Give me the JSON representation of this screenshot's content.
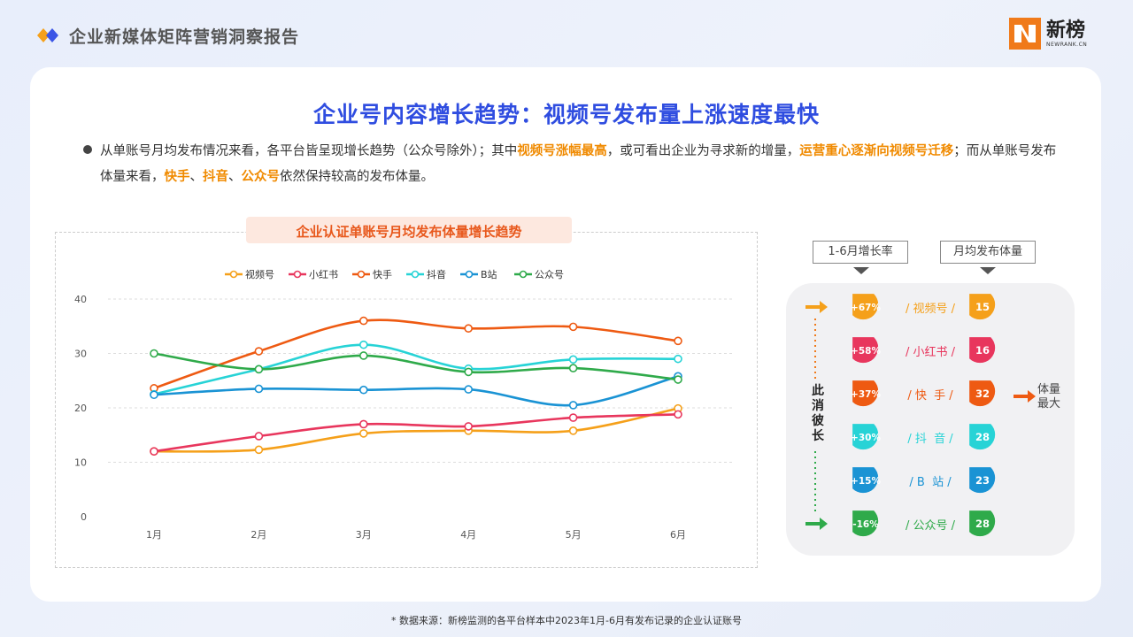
{
  "header": {
    "title": "企业新媒体矩阵营销洞察报告",
    "brand_cn": "新榜",
    "brand_en": "NEWRANK.CN"
  },
  "main_title": "企业号内容增长趋势：视频号发布量上涨速度最快",
  "paragraph": {
    "p1": "从单账号月均发布情况来看，各平台皆呈现增长趋势（公众号除外）；其中",
    "h1": "视频号涨幅最高",
    "p2": "，或可看出企业为寻求新的增量，",
    "h2": "运营重心逐渐向视频号迁移",
    "p3": "；而从单账号发布体量来看，",
    "h3": "快手",
    "p4": "、",
    "h4": "抖音",
    "p5": "、",
    "h5": "公众号",
    "p6": "依然保持较高的发布体量。"
  },
  "chart_data": {
    "type": "line",
    "title": "企业认证单账号月均发布体量增长趋势",
    "categories": [
      "1月",
      "2月",
      "3月",
      "4月",
      "5月",
      "6月"
    ],
    "ylim": [
      0,
      40
    ],
    "yticks": [
      0,
      10,
      20,
      30,
      40
    ],
    "grid": true,
    "legend_position": "top",
    "series": [
      {
        "name": "视频号",
        "color": "#f5a01a",
        "values": [
          12,
          12.3,
          15.3,
          15.8,
          15.8,
          19.9
        ]
      },
      {
        "name": "小红书",
        "color": "#e8365d",
        "values": [
          12,
          14.8,
          17,
          16.6,
          18.2,
          18.8
        ]
      },
      {
        "name": "快手",
        "color": "#ee5a12",
        "values": [
          23.6,
          30.4,
          36,
          34.6,
          34.9,
          32.3
        ]
      },
      {
        "name": "抖音",
        "color": "#27d3d6",
        "values": [
          22.5,
          27.1,
          31.6,
          27.2,
          28.9,
          29
        ]
      },
      {
        "name": "B站",
        "color": "#1a93d4",
        "values": [
          22.4,
          23.5,
          23.3,
          23.4,
          20.5,
          25.8
        ]
      },
      {
        "name": "公众号",
        "color": "#2faa4a",
        "values": [
          30,
          27.1,
          29.6,
          26.6,
          27.3,
          25.2
        ]
      }
    ]
  },
  "right_panel": {
    "header_left": "1-6月增长率",
    "header_right": "月均发布体量",
    "vertical_label": "此消彼长",
    "side_note": "体量最大",
    "rows": [
      {
        "rate": "+67%",
        "name": "/ 视频号 /",
        "volume": "15",
        "color": "#f5a01a"
      },
      {
        "rate": "+58%",
        "name": "/ 小红书 /",
        "volume": "16",
        "color": "#e8365d"
      },
      {
        "rate": "+37%",
        "name": "/ 快  手 /",
        "volume": "32",
        "color": "#ee5a12"
      },
      {
        "rate": "+30%",
        "name": "/ 抖  音 /",
        "volume": "28",
        "color": "#27d3d6"
      },
      {
        "rate": "+15%",
        "name": "/ B  站 /",
        "volume": "23",
        "color": "#1a93d4"
      },
      {
        "rate": "-16%",
        "name": "/ 公众号 /",
        "volume": "28",
        "color": "#2faa4a"
      }
    ]
  },
  "footer": "* 数据来源：新榜监测的各平台样本中2023年1月-6月有发布记录的企业认证账号"
}
